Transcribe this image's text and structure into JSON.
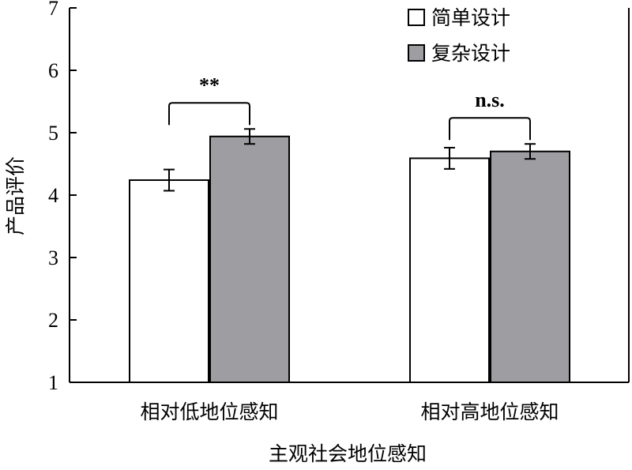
{
  "chart_data": {
    "type": "bar",
    "categories": [
      "相对低地位感知",
      "相对高地位感知"
    ],
    "series": [
      {
        "name": "简单设计",
        "values": [
          4.24,
          4.59
        ],
        "errors": [
          0.17,
          0.17
        ],
        "color": "#ffffff"
      },
      {
        "name": "复杂设计",
        "values": [
          4.94,
          4.7
        ],
        "errors": [
          0.12,
          0.12
        ],
        "color": "#9e9ea2"
      }
    ],
    "title": "",
    "xlabel": "主观社会地位感知",
    "ylabel": "产品评价",
    "ylim": [
      1,
      7
    ],
    "yticks": [
      "1",
      "2",
      "3",
      "4",
      "5",
      "6",
      "7"
    ],
    "legend_position": "top-right",
    "grid": false,
    "annotations": [
      {
        "category_index": 0,
        "text": "**"
      },
      {
        "category_index": 1,
        "text": "n.s."
      }
    ]
  }
}
